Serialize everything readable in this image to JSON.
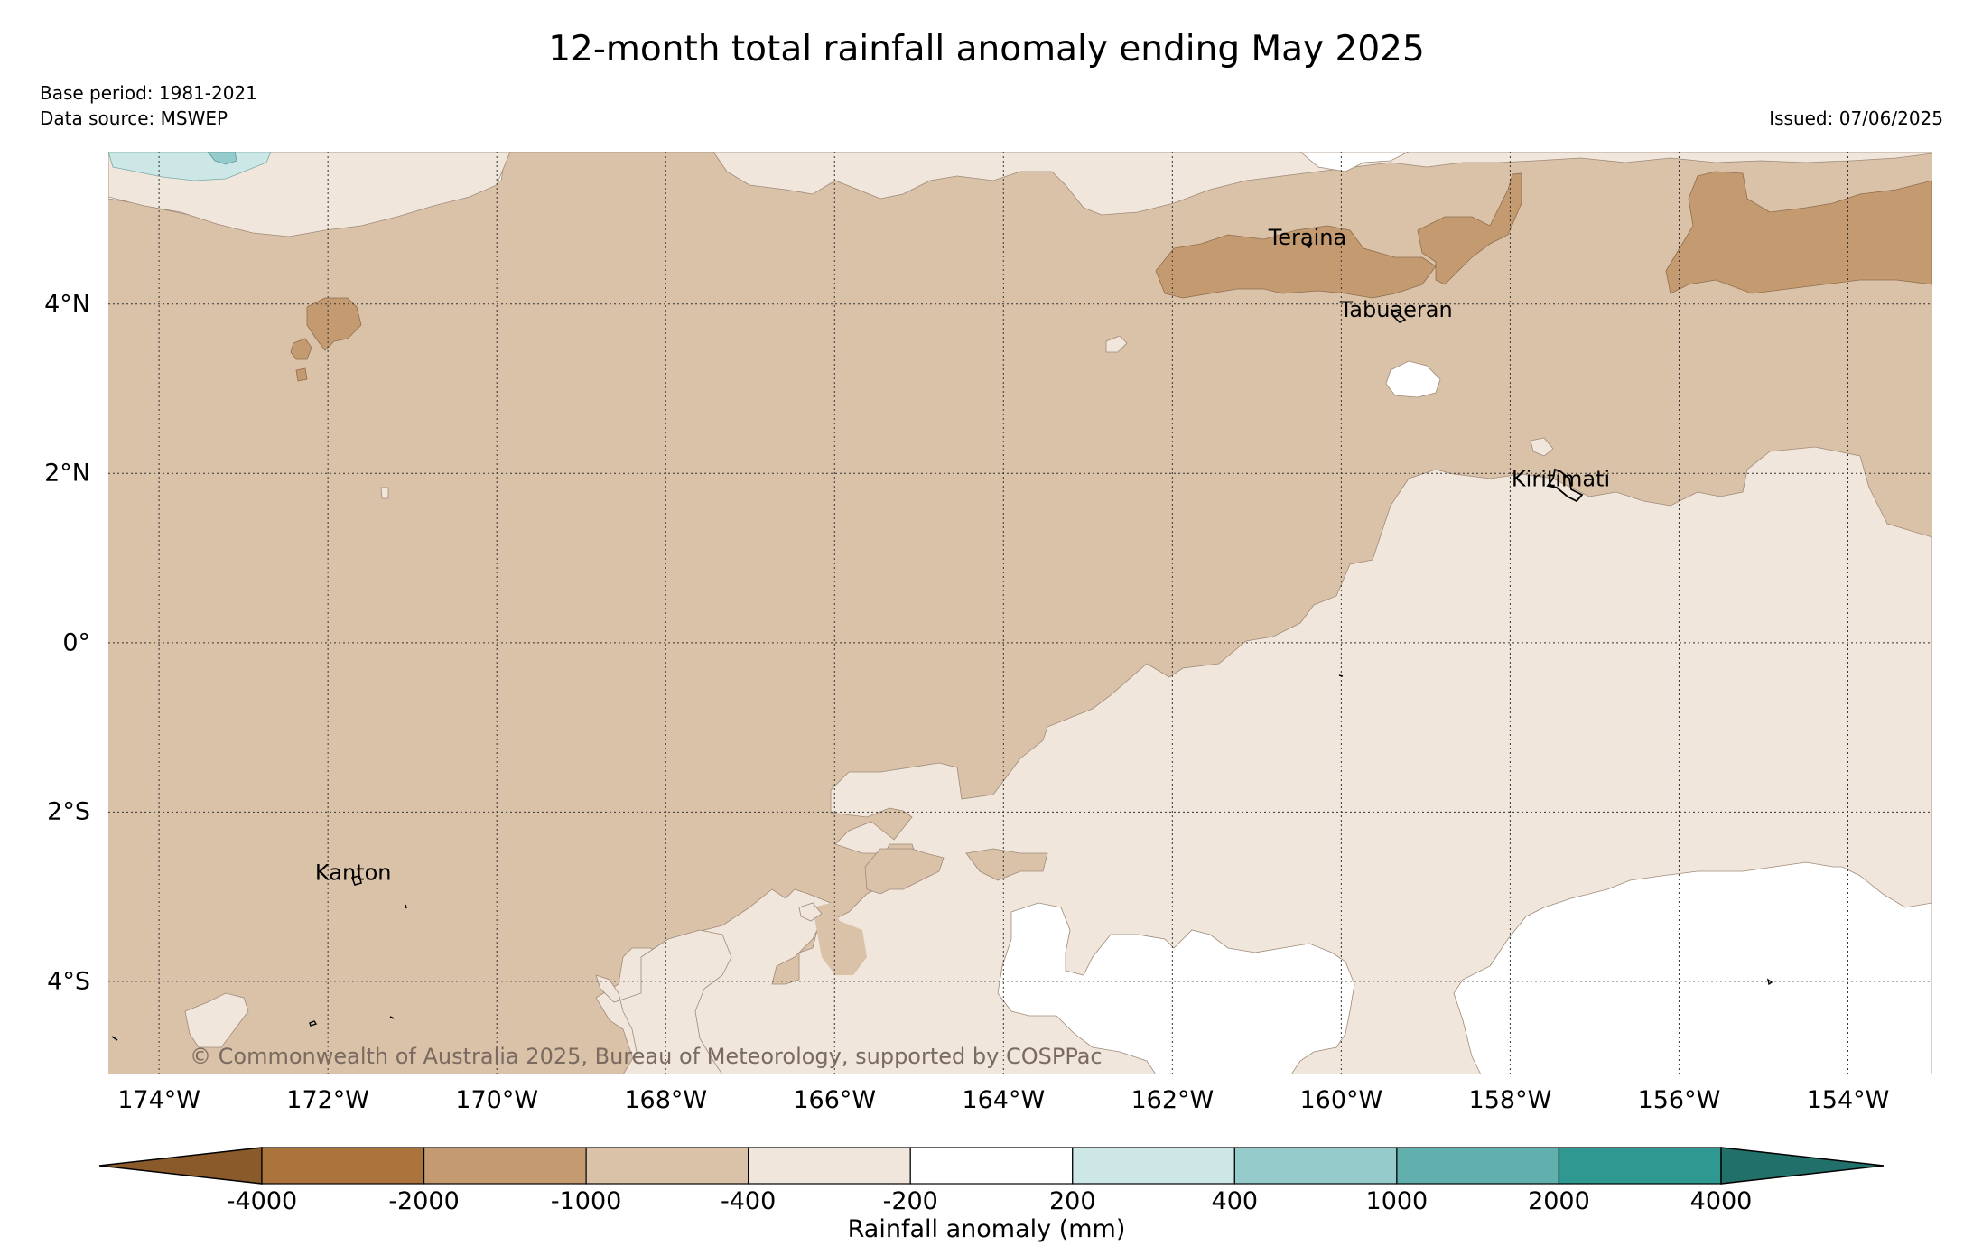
{
  "title": "12-month total rainfall anomaly ending May 2025",
  "base_period": "Base period: 1981-2021",
  "data_source": "Data source: MSWEP",
  "issued": "Issued: 07/06/2025",
  "copyright": "© Commonwealth of Australia 2025, Bureau of Meteorology, supported by COSPPac",
  "map": {
    "lon_range": [
      -174.6,
      -153.0
    ],
    "lat_range": [
      -5.1,
      5.8
    ],
    "lat_ticks": [
      {
        "value": 4,
        "label": "4°N"
      },
      {
        "value": 2,
        "label": "2°N"
      },
      {
        "value": 0,
        "label": "0°"
      },
      {
        "value": -2,
        "label": "2°S"
      },
      {
        "value": -4,
        "label": "4°S"
      }
    ],
    "lon_ticks": [
      {
        "value": -174,
        "label": "174°W"
      },
      {
        "value": -172,
        "label": "172°W"
      },
      {
        "value": -170,
        "label": "170°W"
      },
      {
        "value": -168,
        "label": "168°W"
      },
      {
        "value": -166,
        "label": "166°W"
      },
      {
        "value": -164,
        "label": "164°W"
      },
      {
        "value": -162,
        "label": "162°W"
      },
      {
        "value": -160,
        "label": "160°W"
      },
      {
        "value": -158,
        "label": "158°W"
      },
      {
        "value": -156,
        "label": "156°W"
      },
      {
        "value": -154,
        "label": "154°W"
      }
    ],
    "places": [
      {
        "name": "Teraina",
        "lon": -160.4,
        "lat": 4.7
      },
      {
        "name": "Tabuaeran",
        "lon": -159.35,
        "lat": 3.85
      },
      {
        "name": "Kiritimati",
        "lon": -157.4,
        "lat": 1.85
      },
      {
        "name": "Kanton",
        "lon": -171.7,
        "lat": -2.8
      }
    ]
  },
  "colorbar": {
    "label": "Rainfall anomaly (mm)",
    "ticks": [
      "-4000",
      "-2000",
      "-1000",
      "-400",
      "-200",
      "200",
      "400",
      "1000",
      "2000",
      "4000"
    ],
    "colors": {
      "below_-4000": "#8a5a2b",
      "-4000_-2000": "#ab743c",
      "-2000_-1000": "#c49b71",
      "-1000_-400": "#dac2a9",
      "-400_-200": "#f0e6dc",
      "-200_200": "#ffffff",
      "200_400": "#cde6e6",
      "400_1000": "#96cbcb",
      "1000_2000": "#62b0ae",
      "2000_4000": "#2f9890",
      "above_4000": "#22706a"
    }
  }
}
